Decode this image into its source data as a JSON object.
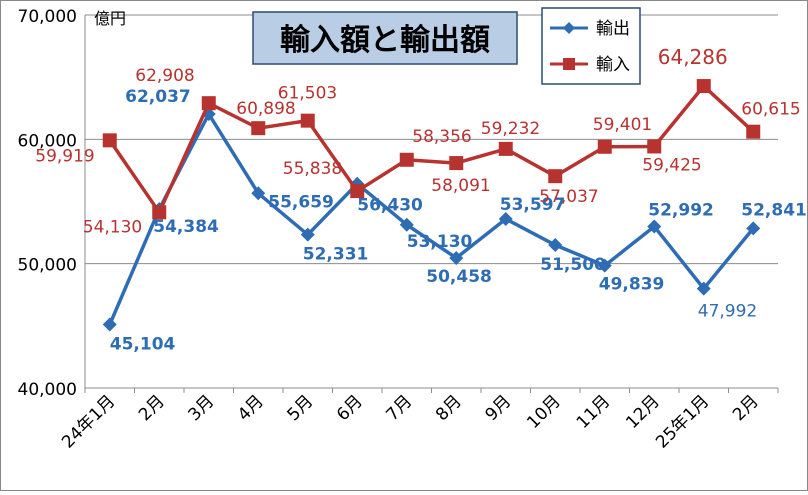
{
  "chart_data": {
    "type": "line",
    "title": "輸入額と輸出額",
    "unit_label": "億円",
    "categories": [
      "24年1月",
      "2月",
      "3月",
      "4月",
      "5月",
      "6月",
      "7月",
      "8月",
      "9月",
      "10月",
      "11月",
      "12月",
      "25年1月",
      "2月"
    ],
    "ylim": [
      40000,
      70000
    ],
    "y_ticks": [
      40000,
      50000,
      60000,
      70000
    ],
    "y_tick_labels": [
      "40,000",
      "50,000",
      "60,000",
      "70,000"
    ],
    "grid": true,
    "legend_position": "top-right",
    "series": [
      {
        "name": "輸出",
        "color": "#2e6db4",
        "marker": "diamond",
        "values": [
          45104,
          54384,
          62037,
          55659,
          52331,
          56430,
          53130,
          50458,
          53597,
          51500,
          49839,
          52992,
          47992,
          52841
        ],
        "labels": [
          "45,104",
          "54,384",
          "62,037",
          "55,659",
          "52,331",
          "56,430",
          "53,130",
          "50,458",
          "53,597",
          "51,500",
          "49,839",
          "52,992",
          "47,992",
          "52,841"
        ]
      },
      {
        "name": "輸入",
        "color": "#b73330",
        "marker": "square",
        "values": [
          59919,
          54130,
          62908,
          60898,
          61503,
          55838,
          58356,
          58091,
          59232,
          57037,
          59401,
          59425,
          64286,
          60615
        ],
        "labels": [
          "59,919",
          "54,130",
          "62,908",
          "60,898",
          "61,503",
          "55,838",
          "58,356",
          "58,091",
          "59,232",
          "57,037",
          "59,401",
          "59,425",
          "64,286",
          "60,615"
        ]
      }
    ]
  }
}
